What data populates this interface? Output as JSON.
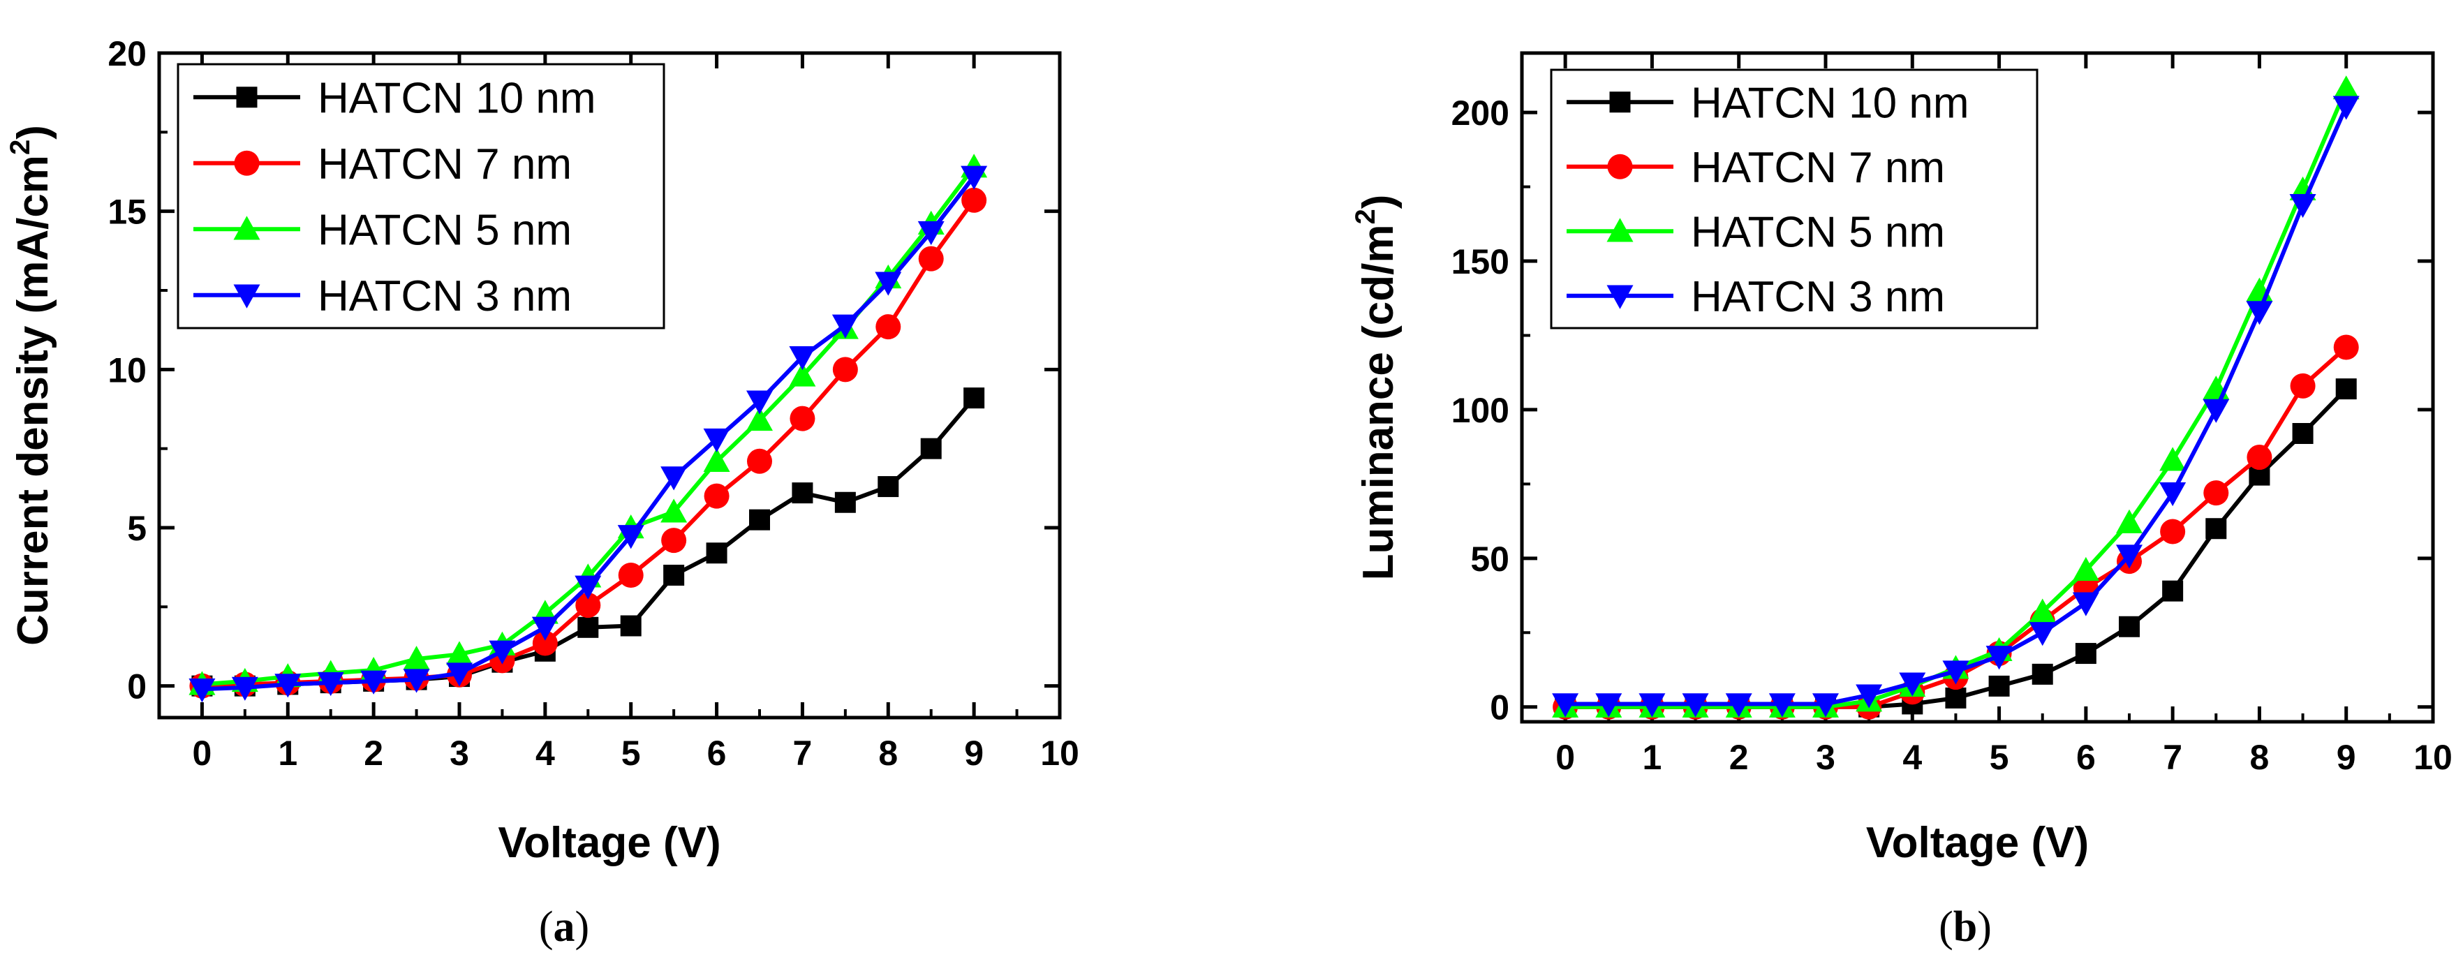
{
  "chart_data": [
    {
      "type": "line",
      "panel": "a",
      "caption": {
        "open": "(",
        "letter": "a",
        "close": ")"
      },
      "xlabel": "Voltage (V)",
      "ylabel": "Current density (mA/cm",
      "ylabel_sup": "2",
      "ylabel_close": ")",
      "xlim": [
        -0.5,
        10
      ],
      "ylim": [
        -1,
        20
      ],
      "xticks": [
        0,
        1,
        2,
        3,
        4,
        5,
        6,
        7,
        8,
        9,
        10
      ],
      "yticks": [
        0,
        5,
        10,
        15,
        20
      ],
      "x": [
        0,
        0.5,
        1,
        1.5,
        2,
        2.5,
        3,
        3.5,
        4,
        4.5,
        5,
        5.5,
        6,
        6.5,
        7,
        7.5,
        8,
        8.5,
        9
      ],
      "series": [
        {
          "name": "HATCN 10 nm",
          "color": "#000000",
          "marker": "square",
          "values": [
            0,
            0,
            0.05,
            0.1,
            0.15,
            0.2,
            0.3,
            0.75,
            1.1,
            1.85,
            1.9,
            3.5,
            4.2,
            5.25,
            6.1,
            5.8,
            6.3,
            7.5,
            9.1
          ]
        },
        {
          "name": "HATCN 7 nm",
          "color": "#ff0000",
          "marker": "circle",
          "values": [
            0,
            0.05,
            0.1,
            0.15,
            0.2,
            0.25,
            0.35,
            0.8,
            1.35,
            2.55,
            3.5,
            4.6,
            6.0,
            7.1,
            8.45,
            10.0,
            11.35,
            13.5,
            15.35
          ]
        },
        {
          "name": "HATCN 5 nm",
          "color": "#00ff00",
          "marker": "triangle-up",
          "values": [
            0.05,
            0.15,
            0.3,
            0.4,
            0.5,
            0.85,
            1.0,
            1.3,
            2.3,
            3.45,
            5.0,
            5.5,
            7.1,
            8.4,
            9.8,
            11.3,
            12.9,
            14.6,
            16.4
          ]
        },
        {
          "name": "HATCN 3 nm",
          "color": "#0000ff",
          "marker": "triangle-down",
          "values": [
            -0.1,
            -0.05,
            0.05,
            0.1,
            0.15,
            0.2,
            0.4,
            1.1,
            1.85,
            3.15,
            4.75,
            6.6,
            7.8,
            9.0,
            10.4,
            11.4,
            12.75,
            14.35,
            16.1
          ]
        }
      ]
    },
    {
      "type": "line",
      "panel": "b",
      "caption": {
        "open": "(",
        "letter": "b",
        "close": ")"
      },
      "xlabel": "Voltage (V)",
      "ylabel": "Luminance (cd/m",
      "ylabel_sup": "2",
      "ylabel_close": ")",
      "xlim": [
        -0.5,
        10
      ],
      "ylim": [
        -5,
        220
      ],
      "xticks": [
        0,
        1,
        2,
        3,
        4,
        5,
        6,
        7,
        8,
        9,
        10
      ],
      "yticks": [
        0,
        50,
        100,
        150,
        200
      ],
      "x": [
        0,
        0.5,
        1,
        1.5,
        2,
        2.5,
        3,
        3.5,
        4,
        4.5,
        5,
        5.5,
        6,
        6.5,
        7,
        7.5,
        8,
        8.5,
        9
      ],
      "series": [
        {
          "name": "HATCN 10 nm",
          "color": "#000000",
          "marker": "square",
          "values": [
            0,
            0,
            0,
            0,
            0,
            0,
            0,
            0,
            1,
            3,
            7,
            11,
            18,
            27,
            39,
            60,
            78,
            92,
            107
          ]
        },
        {
          "name": "HATCN 7 nm",
          "color": "#ff0000",
          "marker": "circle",
          "values": [
            0,
            0,
            0,
            0,
            0,
            0,
            0,
            0,
            5,
            10,
            18,
            29,
            40,
            49,
            59,
            72,
            84,
            108,
            121
          ]
        },
        {
          "name": "HATCN 5 nm",
          "color": "#00ff00",
          "marker": "triangle-up",
          "values": [
            0,
            0,
            0,
            0,
            0,
            0,
            0,
            2,
            7,
            13,
            19,
            32,
            46,
            62,
            83,
            107,
            140,
            174,
            208
          ]
        },
        {
          "name": "HATCN 3 nm",
          "color": "#0000ff",
          "marker": "triangle-down",
          "values": [
            1,
            1,
            1,
            1,
            1,
            1,
            1,
            4,
            8,
            12,
            17,
            25,
            35,
            51,
            72,
            100,
            133,
            169,
            202
          ]
        }
      ]
    }
  ]
}
